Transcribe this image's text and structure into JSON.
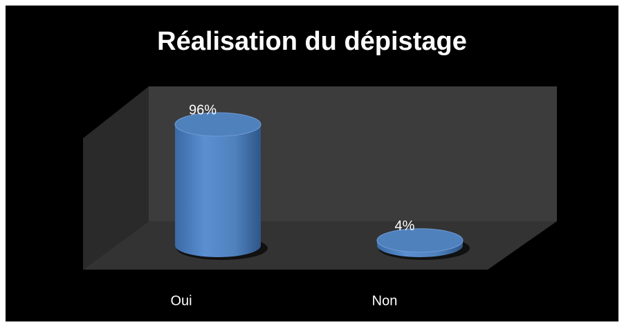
{
  "chart_data": {
    "type": "bar3d",
    "title": "Réalisation du dépistage",
    "categories": [
      "Oui",
      "Non"
    ],
    "values": [
      96,
      4
    ],
    "value_labels": [
      "96%",
      "4%"
    ],
    "color": "#4f81bd"
  }
}
